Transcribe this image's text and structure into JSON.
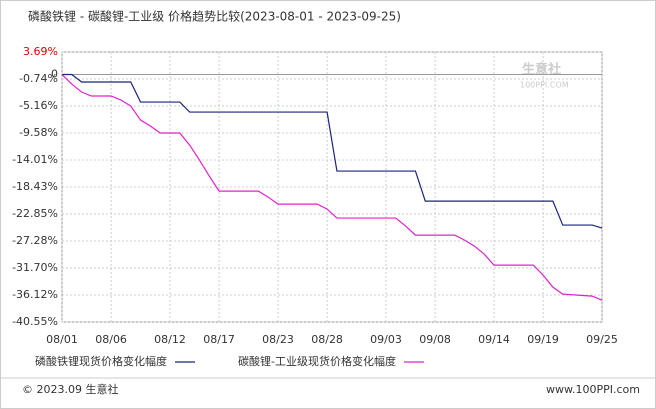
{
  "chart_data": {
    "type": "line",
    "title": "磷酸铁锂 - 碳酸锂-工业级 价格趋势比较(2023-08-01 - 2023-09-25)",
    "xlim": [
      0,
      55
    ],
    "xticks": [
      {
        "value": 0,
        "label": "08/01"
      },
      {
        "value": 5,
        "label": "08/06"
      },
      {
        "value": 11,
        "label": "08/12"
      },
      {
        "value": 16,
        "label": "08/17"
      },
      {
        "value": 22,
        "label": "08/23"
      },
      {
        "value": 27,
        "label": "08/28"
      },
      {
        "value": 33,
        "label": "09/03"
      },
      {
        "value": 38,
        "label": "09/08"
      },
      {
        "value": 44,
        "label": "09/14"
      },
      {
        "value": 49,
        "label": "09/19"
      },
      {
        "value": 55,
        "label": "09/25"
      }
    ],
    "ylim": [
      -40.55,
      3.69
    ],
    "yticks": [
      {
        "value": 3.69,
        "label": "3.69%"
      },
      0,
      {
        "value": -0.74,
        "label": "-0.74%"
      },
      {
        "value": -5.16,
        "label": "-5.16%"
      },
      {
        "value": -9.58,
        "label": "-9.58%"
      },
      {
        "value": -14.01,
        "label": "-14.01%"
      },
      {
        "value": -18.43,
        "label": "-18.43%"
      },
      {
        "value": -22.85,
        "label": "-22.85%"
      },
      {
        "value": -27.28,
        "label": "-27.28%"
      },
      {
        "value": -31.7,
        "label": "-31.70%"
      },
      {
        "value": -36.12,
        "label": "-36.12%"
      },
      {
        "value": -40.55,
        "label": "-40.55%"
      }
    ],
    "grid": true,
    "series": [
      {
        "name": "磷酸铁锂现货价格变化幅度",
        "color": "#1a237e",
        "x": [
          0,
          1,
          2,
          7,
          8,
          12,
          13,
          27,
          28,
          36,
          37,
          50,
          51,
          54,
          55
        ],
        "values": [
          0,
          0,
          -1.23,
          -1.23,
          -4.51,
          -4.51,
          -6.15,
          -6.15,
          -15.82,
          -15.82,
          -20.74,
          -20.74,
          -24.67,
          -24.67,
          -25.16
        ]
      },
      {
        "name": "碳酸锂-工业级现货价格变化幅度",
        "color": "#e020d0",
        "x": [
          0,
          1,
          2,
          3,
          5,
          6,
          7,
          8,
          9,
          10,
          12,
          13,
          14,
          15,
          16,
          20,
          21,
          22,
          26,
          27,
          28,
          34,
          35,
          36,
          40,
          41,
          42,
          43,
          44,
          48,
          49,
          50,
          51,
          54,
          55
        ],
        "values": [
          0,
          -1.56,
          -2.87,
          -3.52,
          -3.52,
          -4.18,
          -5.16,
          -7.46,
          -8.44,
          -9.58,
          -9.58,
          -11.56,
          -14.01,
          -16.64,
          -19.1,
          -19.1,
          -20.08,
          -21.23,
          -21.23,
          -22.05,
          -23.52,
          -23.52,
          -24.83,
          -26.31,
          -26.31,
          -27.13,
          -28.11,
          -29.42,
          -31.23,
          -31.23,
          -32.87,
          -34.84,
          -35.98,
          -36.31,
          -36.97
        ]
      }
    ],
    "watermark": "生意社",
    "watermark_sub": "100PPI.COM",
    "footer": "© 2023.09 生意社",
    "source": "www.100PPI.com"
  }
}
